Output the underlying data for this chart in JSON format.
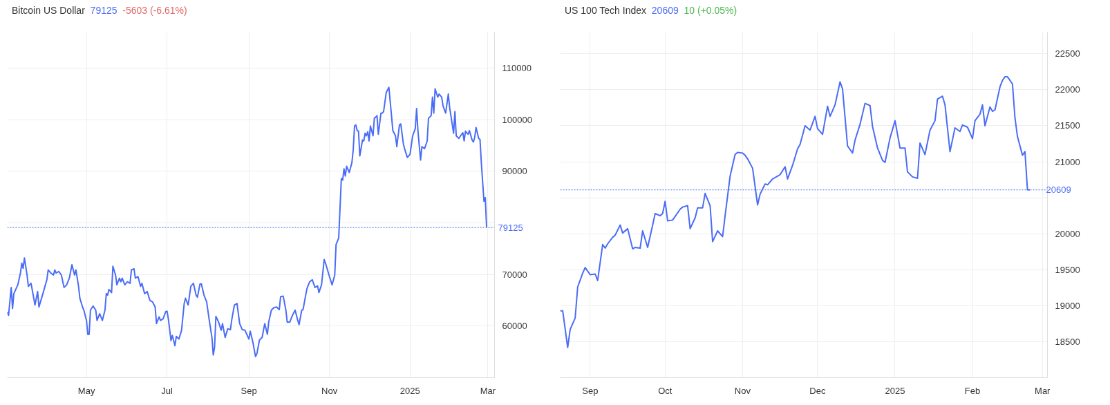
{
  "chart_data": [
    {
      "type": "line",
      "title": "Bitcoin US Dollar",
      "annotations": [
        "79125",
        "-5603 (-6.61%)"
      ],
      "series": [
        {
          "color": "#4a6cf7",
          "x": [
            "2024-03-02",
            "2024-03-03",
            "2024-03-05",
            "2024-03-06",
            "2024-03-07",
            "2024-03-10",
            "2024-03-12",
            "2024-03-13",
            "2024-03-14",
            "2024-03-15",
            "2024-03-17",
            "2024-03-18",
            "2024-03-20",
            "2024-03-23",
            "2024-03-25",
            "2024-03-26",
            "2024-03-29",
            "2024-04-01",
            "2024-04-02",
            "2024-04-04",
            "2024-04-06",
            "2024-04-07",
            "2024-04-08",
            "2024-04-10",
            "2024-04-12",
            "2024-04-14",
            "2024-04-16",
            "2024-04-18",
            "2024-04-20",
            "2024-04-22",
            "2024-04-23",
            "2024-04-25",
            "2024-04-26",
            "2024-04-28",
            "2024-04-29",
            "2024-05-01",
            "2024-05-02",
            "2024-05-03",
            "2024-05-04",
            "2024-05-06",
            "2024-05-08",
            "2024-05-09",
            "2024-05-11",
            "2024-05-13",
            "2024-05-15",
            "2024-05-16",
            "2024-05-17",
            "2024-05-18",
            "2024-05-20",
            "2024-05-21",
            "2024-05-23",
            "2024-05-24",
            "2024-05-26",
            "2024-05-27",
            "2024-05-28",
            "2024-05-30",
            "2024-06-01",
            "2024-06-03",
            "2024-06-04",
            "2024-06-06",
            "2024-06-07",
            "2024-06-09",
            "2024-06-11",
            "2024-06-12",
            "2024-06-14",
            "2024-06-16",
            "2024-06-18",
            "2024-06-20",
            "2024-06-22",
            "2024-06-23",
            "2024-06-25",
            "2024-06-26",
            "2024-06-28",
            "2024-06-30",
            "2024-07-01",
            "2024-07-02",
            "2024-07-04",
            "2024-07-05",
            "2024-07-07",
            "2024-07-08",
            "2024-07-10",
            "2024-07-12",
            "2024-07-14",
            "2024-07-15",
            "2024-07-17",
            "2024-07-19",
            "2024-07-21",
            "2024-07-23",
            "2024-07-24",
            "2024-07-26",
            "2024-07-27",
            "2024-07-29",
            "2024-07-31",
            "2024-08-02",
            "2024-08-04",
            "2024-08-05",
            "2024-08-06",
            "2024-08-07",
            "2024-08-09",
            "2024-08-11",
            "2024-08-12",
            "2024-08-14",
            "2024-08-16",
            "2024-08-18",
            "2024-08-19",
            "2024-08-21",
            "2024-08-23",
            "2024-08-25",
            "2024-08-27",
            "2024-08-29",
            "2024-09-01",
            "2024-09-02",
            "2024-09-04",
            "2024-09-06",
            "2024-09-07",
            "2024-09-09",
            "2024-09-11",
            "2024-09-13",
            "2024-09-15",
            "2024-09-16",
            "2024-09-18",
            "2024-09-20",
            "2024-09-22",
            "2024-09-24",
            "2024-09-25",
            "2024-09-27",
            "2024-09-29",
            "2024-09-30",
            "2024-10-02",
            "2024-10-04",
            "2024-10-06",
            "2024-10-08",
            "2024-10-09",
            "2024-10-11",
            "2024-10-12",
            "2024-10-14",
            "2024-10-15",
            "2024-10-17",
            "2024-10-19",
            "2024-10-21",
            "2024-10-23",
            "2024-10-24",
            "2024-10-26",
            "2024-10-28",
            "2024-10-29",
            "2024-11-01",
            "2024-11-03",
            "2024-11-05",
            "2024-11-06",
            "2024-11-08",
            "2024-11-10",
            "2024-11-11",
            "2024-11-12",
            "2024-11-13",
            "2024-11-14",
            "2024-11-16",
            "2024-11-18",
            "2024-11-19",
            "2024-11-20",
            "2024-11-21",
            "2024-11-22",
            "2024-11-23",
            "2024-11-24",
            "2024-11-26",
            "2024-11-27",
            "2024-11-28",
            "2024-11-29",
            "2024-11-30",
            "2024-12-01",
            "2024-12-02",
            "2024-12-04",
            "2024-12-05",
            "2024-12-06",
            "2024-12-07",
            "2024-12-08",
            "2024-12-10",
            "2024-12-11",
            "2024-12-12",
            "2024-12-14",
            "2024-12-16",
            "2024-12-18",
            "2024-12-19",
            "2024-12-21",
            "2024-12-22",
            "2024-12-24",
            "2024-12-25",
            "2024-12-27",
            "2024-12-28",
            "2024-12-30",
            "2025-01-01",
            "2025-01-03",
            "2025-01-05",
            "2025-01-06",
            "2025-01-07",
            "2025-01-09",
            "2025-01-10",
            "2025-01-12",
            "2025-01-14",
            "2025-01-15",
            "2025-01-17",
            "2025-01-18",
            "2025-01-19",
            "2025-01-20",
            "2025-01-22",
            "2025-01-23",
            "2025-01-25",
            "2025-01-26",
            "2025-01-28",
            "2025-01-30",
            "2025-01-31",
            "2025-02-03",
            "2025-02-04",
            "2025-02-05",
            "2025-02-07",
            "2025-02-08",
            "2025-02-10",
            "2025-02-11",
            "2025-02-12",
            "2025-02-14",
            "2025-02-15",
            "2025-02-17",
            "2025-02-18",
            "2025-02-19",
            "2025-02-20",
            "2025-02-22",
            "2025-02-23",
            "2025-02-24",
            "2025-02-26",
            "2025-02-27",
            "2025-02-28"
          ],
          "values": [
            62700,
            62100,
            67500,
            63400,
            66300,
            68000,
            70300,
            72200,
            71200,
            73200,
            69900,
            67700,
            68300,
            64100,
            66700,
            63700,
            66300,
            69000,
            70900,
            70300,
            69900,
            70900,
            70300,
            70600,
            69900,
            67500,
            68000,
            69300,
            71900,
            69900,
            70900,
            67700,
            65400,
            63700,
            63100,
            61100,
            58400,
            58400,
            63100,
            63900,
            63100,
            61100,
            62400,
            61100,
            63100,
            66300,
            66000,
            67100,
            66500,
            71600,
            69900,
            68000,
            69300,
            68600,
            69300,
            68000,
            68600,
            68300,
            70900,
            71100,
            69300,
            69600,
            67700,
            68300,
            66300,
            66700,
            65000,
            64700,
            63700,
            60500,
            61800,
            61100,
            61400,
            62800,
            62900,
            61400,
            57200,
            58200,
            56200,
            58000,
            57500,
            59200,
            64400,
            65400,
            64100,
            67700,
            68300,
            66000,
            65600,
            68200,
            68200,
            66000,
            64700,
            61100,
            57800,
            54400,
            55900,
            61900,
            60800,
            59200,
            60500,
            57800,
            59500,
            59300,
            61200,
            64100,
            64400,
            60500,
            59300,
            59200,
            57500,
            59000,
            56900,
            54100,
            54600,
            57300,
            57800,
            60500,
            58400,
            60800,
            63100,
            63600,
            63700,
            63200,
            65700,
            65800,
            63100,
            60800,
            60800,
            62100,
            63100,
            61100,
            60300,
            63100,
            63200,
            66000,
            67300,
            68600,
            69000,
            67500,
            67800,
            66500,
            68000,
            72900,
            72200,
            69600,
            68000,
            69900,
            75800,
            77100,
            88600,
            88300,
            90500,
            89100,
            91000,
            89800,
            91700,
            94200,
            98800,
            99000,
            97900,
            97800,
            93000,
            96100,
            95900,
            97400,
            96900,
            97700,
            95900,
            98800,
            96900,
            100300,
            100500,
            100800,
            97200,
            101300,
            101300,
            101600,
            105300,
            106300,
            100800,
            97900,
            96900,
            94800,
            99000,
            99200,
            95300,
            94300,
            92700,
            93300,
            96900,
            98300,
            102200,
            97900,
            92200,
            94800,
            94400,
            95900,
            100300,
            100800,
            104400,
            101300,
            106000,
            104400,
            105000,
            104400,
            102700,
            101300,
            105000,
            102400,
            97400,
            101600,
            96900,
            96400,
            96800,
            97500,
            95900,
            97800,
            97200,
            97900,
            96100,
            95700,
            96600,
            98500,
            96400,
            96200,
            91700,
            84200,
            84900,
            79125
          ]
        }
      ],
      "xlim": [
        "2024-03-02",
        "2025-03-06"
      ],
      "ylim": [
        50000,
        117000
      ],
      "xticks": [
        {
          "value": "2024-05-01",
          "label": "May"
        },
        {
          "value": "2024-07-01",
          "label": "Jul"
        },
        {
          "value": "2024-09-01",
          "label": "Sep"
        },
        {
          "value": "2024-11-01",
          "label": "Nov"
        },
        {
          "value": "2025-01-01",
          "label": "2025"
        },
        {
          "value": "2025-03-01",
          "label": "Mar"
        }
      ],
      "yticks": [
        60000,
        70000,
        {
          "value": 80000,
          "label": null
        },
        90000,
        100000,
        110000
      ],
      "ref_lines": [
        {
          "axis": "y",
          "value": 79125,
          "label": "79125",
          "color": "#4a6cf7",
          "line_style": "dotted"
        }
      ],
      "grid": true
    },
    {
      "type": "line",
      "title": "US 100 Tech Index",
      "annotations": [
        "20609",
        "10 (+0.05%)"
      ],
      "series": [
        {
          "color": "#4a6cf7",
          "x": [
            "2024-08-20",
            "2024-08-21",
            "2024-08-23",
            "2024-08-24",
            "2024-08-26",
            "2024-08-27",
            "2024-08-29",
            "2024-08-30",
            "2024-09-01",
            "2024-09-03",
            "2024-09-04",
            "2024-09-06",
            "2024-09-07",
            "2024-09-08",
            "2024-09-10",
            "2024-09-11",
            "2024-09-13",
            "2024-09-14",
            "2024-09-16",
            "2024-09-18",
            "2024-09-19",
            "2024-09-21",
            "2024-09-22",
            "2024-09-24",
            "2024-09-26",
            "2024-09-27",
            "2024-09-29",
            "2024-09-30",
            "2024-10-01",
            "2024-10-02",
            "2024-10-04",
            "2024-10-07",
            "2024-10-08",
            "2024-10-10",
            "2024-10-11",
            "2024-10-13",
            "2024-10-14",
            "2024-10-16",
            "2024-10-17",
            "2024-10-19",
            "2024-10-20",
            "2024-10-22",
            "2024-10-24",
            "2024-10-25",
            "2024-10-27",
            "2024-10-29",
            "2024-10-30",
            "2024-11-01",
            "2024-11-02",
            "2024-11-03",
            "2024-11-05",
            "2024-11-07",
            "2024-11-08",
            "2024-11-10",
            "2024-11-11",
            "2024-11-13",
            "2024-11-15",
            "2024-11-16",
            "2024-11-18",
            "2024-11-19",
            "2024-11-21",
            "2024-11-23",
            "2024-11-24",
            "2024-11-26",
            "2024-11-28",
            "2024-11-30",
            "2024-12-01",
            "2024-12-03",
            "2024-12-05",
            "2024-12-06",
            "2024-12-08",
            "2024-12-10",
            "2024-12-11",
            "2024-12-13",
            "2024-12-15",
            "2024-12-16",
            "2024-12-18",
            "2024-12-20",
            "2024-12-22",
            "2024-12-23",
            "2024-12-25",
            "2024-12-27",
            "2024-12-28",
            "2024-12-30",
            "2025-01-01",
            "2025-01-03",
            "2025-01-05",
            "2025-01-06",
            "2025-01-08",
            "2025-01-10",
            "2025-01-11",
            "2025-01-13",
            "2025-01-15",
            "2025-01-17",
            "2025-01-18",
            "2025-01-20",
            "2025-01-21",
            "2025-01-23",
            "2025-01-25",
            "2025-01-27",
            "2025-01-28",
            "2025-01-30",
            "2025-02-01",
            "2025-02-02",
            "2025-02-04",
            "2025-02-05",
            "2025-02-06",
            "2025-02-08",
            "2025-02-09",
            "2025-02-10",
            "2025-02-12",
            "2025-02-13",
            "2025-02-14",
            "2025-02-15",
            "2025-02-17",
            "2025-02-18",
            "2025-02-19",
            "2025-02-21",
            "2025-02-22",
            "2025-02-23",
            "2025-02-24"
          ],
          "values": [
            18930,
            18930,
            18420,
            18670,
            18830,
            19260,
            19450,
            19530,
            19430,
            19440,
            19350,
            19850,
            19800,
            19860,
            19950,
            19980,
            20120,
            20010,
            20070,
            19790,
            19810,
            19800,
            20040,
            19810,
            20120,
            20280,
            20250,
            20280,
            20450,
            20180,
            20190,
            20340,
            20370,
            20390,
            20070,
            20220,
            20360,
            20360,
            20560,
            20390,
            19890,
            20040,
            19960,
            20250,
            20800,
            21100,
            21130,
            21120,
            21090,
            21040,
            20910,
            20400,
            20550,
            20690,
            20680,
            20760,
            20800,
            20820,
            20930,
            20760,
            20950,
            21180,
            21240,
            21500,
            21440,
            21630,
            21460,
            21380,
            21770,
            21630,
            21790,
            22110,
            22010,
            21220,
            21120,
            21300,
            21520,
            21810,
            21780,
            21490,
            21190,
            21020,
            20990,
            21330,
            21570,
            21190,
            21190,
            20860,
            20790,
            20770,
            21260,
            21100,
            21440,
            21570,
            21870,
            21910,
            21790,
            21140,
            21470,
            21420,
            21510,
            21480,
            21320,
            21570,
            21660,
            21790,
            21500,
            21760,
            21700,
            21720,
            22040,
            22130,
            22180,
            22180,
            22080,
            21610,
            21350,
            21090,
            21140,
            20610,
            20609
          ]
        }
      ],
      "xlim": [
        "2024-08-20",
        "2025-03-03"
      ],
      "ylim": [
        18000,
        22800
      ],
      "xticks": [
        {
          "value": "2024-09-01",
          "label": "Sep"
        },
        {
          "value": "2024-10-01",
          "label": "Oct"
        },
        {
          "value": "2024-11-01",
          "label": "Nov"
        },
        {
          "value": "2024-12-01",
          "label": "Dec"
        },
        {
          "value": "2025-01-01",
          "label": "2025"
        },
        {
          "value": "2025-02-01",
          "label": "Feb"
        },
        {
          "value": "2025-03-01",
          "label": "Mar"
        }
      ],
      "yticks": [
        18500,
        19000,
        19500,
        20000,
        {
          "value": 20500,
          "label": null
        },
        21000,
        21500,
        22000,
        22500
      ],
      "ref_lines": [
        {
          "axis": "y",
          "value": 20609,
          "label": "20609",
          "color": "#4a6cf7",
          "line_style": "dotted"
        }
      ],
      "grid": true
    }
  ]
}
